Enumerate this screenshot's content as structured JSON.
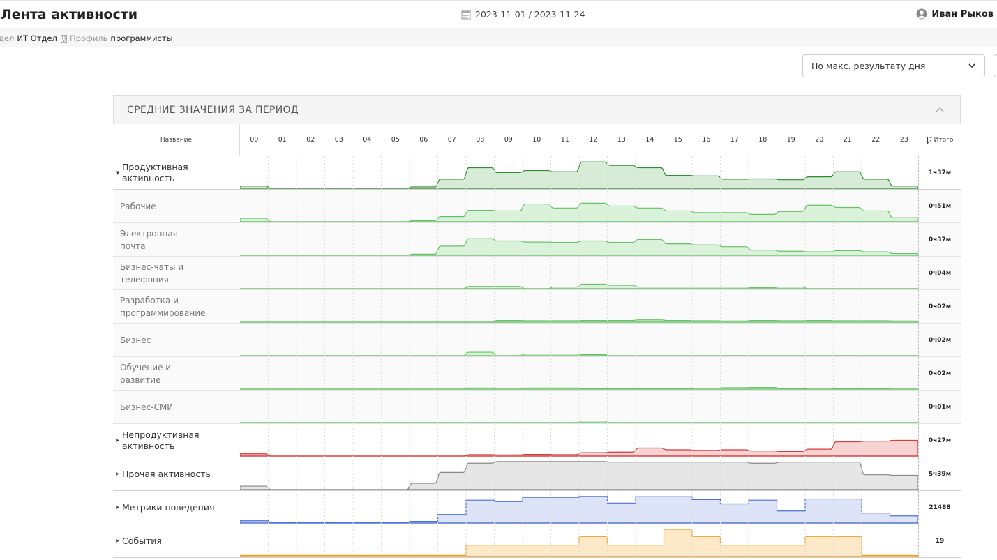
{
  "header": {
    "title": "Лента активности",
    "date_range": "2023-11-01 / 2023-11-24",
    "user_name": "Иван Рыков"
  },
  "filters": {
    "dept_key": "дел",
    "dept_value": "ИТ Отдел",
    "profile_key": "Профиль",
    "profile_value": "программисты"
  },
  "sort": {
    "selected": "По макс. результату дня"
  },
  "panel": {
    "title": "СРЕДНИЕ ЗНАЧЕНИЯ ЗА ПЕРИОД"
  },
  "table": {
    "name_header": "Название",
    "total_header": "Итого",
    "hours": [
      "00",
      "01",
      "02",
      "03",
      "04",
      "05",
      "06",
      "07",
      "08",
      "09",
      "10",
      "11",
      "12",
      "13",
      "14",
      "15",
      "16",
      "17",
      "18",
      "19",
      "20",
      "21",
      "22",
      "23"
    ],
    "rows": [
      {
        "label": "Продуктивная активность",
        "total": "1ч37м",
        "kind": "group",
        "expanded": true,
        "color": "#2e8b2e",
        "fill": "#d7ecd7",
        "shape": "smooth",
        "scale": 1.0,
        "values": [
          0.08,
          0,
          0,
          0,
          0,
          0,
          0.05,
          0.32,
          0.72,
          0.55,
          0.62,
          0.58,
          0.92,
          0.8,
          0.72,
          0.45,
          0.43,
          0.32,
          0.33,
          0.3,
          0.4,
          0.58,
          0.32,
          0.08
        ]
      },
      {
        "label": "Рабочие",
        "total": "0ч51м",
        "kind": "sub",
        "color": "#66c266",
        "fill": "#d9f2d9",
        "shape": "smooth",
        "scale": 1.0,
        "values": [
          0.12,
          0,
          0,
          0,
          0,
          0,
          0.04,
          0.18,
          0.4,
          0.38,
          0.62,
          0.48,
          0.65,
          0.55,
          0.48,
          0.38,
          0.32,
          0.32,
          0.26,
          0.36,
          0.58,
          0.5,
          0.38,
          0.14
        ]
      },
      {
        "label": "Электронная почта",
        "total": "0ч37м",
        "kind": "sub",
        "color": "#66c266",
        "fill": "#d9f2d9",
        "shape": "smooth",
        "scale": 1.0,
        "values": [
          0,
          0,
          0,
          0,
          0,
          0,
          0.04,
          0.32,
          0.58,
          0.5,
          0.46,
          0.45,
          0.5,
          0.45,
          0.55,
          0.4,
          0.36,
          0.3,
          0.18,
          0.14,
          0.12,
          0.16,
          0.12,
          0.06
        ]
      },
      {
        "label": "Бизнес-чаты и телефония",
        "total": "0ч04м",
        "kind": "sub",
        "color": "#66c266",
        "fill": "#d9f2d9",
        "shape": "smooth",
        "scale": 1.0,
        "values": [
          0,
          0,
          0,
          0,
          0,
          0,
          0,
          0,
          0.08,
          0.08,
          0,
          0.06,
          0.16,
          0.12,
          0.06,
          0.06,
          0.06,
          0.06,
          0.04,
          0.06,
          0,
          0,
          0,
          0
        ]
      },
      {
        "label": "Разработка и программирование",
        "total": "0ч02м",
        "kind": "sub",
        "color": "#66c266",
        "fill": "#d9f2d9",
        "shape": "smooth",
        "scale": 1.0,
        "values": [
          0,
          0,
          0,
          0,
          0,
          0,
          0,
          0,
          0,
          0.06,
          0.05,
          0.05,
          0.06,
          0.06,
          0.08,
          0.06,
          0.05,
          0.04,
          0.06,
          0.05,
          0.06,
          0.05,
          0.05,
          0.04
        ]
      },
      {
        "label": "Бизнес",
        "total": "0ч02м",
        "kind": "sub",
        "color": "#66c266",
        "fill": "#d9f2d9",
        "shape": "smooth",
        "scale": 1.0,
        "values": [
          0,
          0,
          0,
          0,
          0,
          0,
          0,
          0,
          0.12,
          0,
          0.06,
          0.06,
          0.04,
          0,
          0,
          0,
          0,
          0,
          0,
          0,
          0,
          0,
          0,
          0
        ]
      },
      {
        "label": "Обучение и развитие",
        "total": "0ч02м",
        "kind": "sub",
        "color": "#66c266",
        "fill": "#d9f2d9",
        "shape": "smooth",
        "scale": 1.0,
        "values": [
          0,
          0,
          0,
          0,
          0,
          0,
          0,
          0,
          0.04,
          0,
          0.04,
          0.04,
          0.03,
          0.03,
          0.03,
          0.03,
          0,
          0.05,
          0.06,
          0.03,
          0,
          0.03,
          0.03,
          0
        ]
      },
      {
        "label": "Бизнес-СМИ",
        "total": "0ч01м",
        "kind": "sub",
        "color": "#66c266",
        "fill": "#d9f2d9",
        "shape": "smooth",
        "scale": 1.0,
        "values": [
          0,
          0,
          0,
          0,
          0,
          0,
          0,
          0,
          0,
          0,
          0,
          0,
          0.06,
          0,
          0,
          0,
          0,
          0,
          0,
          0,
          0,
          0,
          0,
          0
        ]
      },
      {
        "label": "Непродуктивная активность",
        "total": "0ч27м",
        "kind": "group",
        "expanded": false,
        "color": "#d63a3a",
        "fill": "#f6d2d2",
        "shape": "smooth",
        "scale": 1.0,
        "values": [
          0.08,
          0,
          0,
          0,
          0,
          0,
          0,
          0,
          0.05,
          0.04,
          0.06,
          0.05,
          0.12,
          0.14,
          0.28,
          0.22,
          0.2,
          0.22,
          0.18,
          0.16,
          0.24,
          0.5,
          0.52,
          0.55
        ]
      },
      {
        "label": "Прочая активность",
        "total": "5ч39м",
        "kind": "group",
        "expanded": false,
        "color": "#888888",
        "fill": "#e6e6e6",
        "shape": "smooth",
        "scale": 1.0,
        "values": [
          0.12,
          0,
          0,
          0,
          0,
          0,
          0.22,
          0.6,
          0.92,
          0.98,
          0.98,
          0.98,
          0.98,
          0.96,
          0.96,
          0.96,
          0.96,
          0.96,
          0.92,
          0.96,
          0.96,
          0.96,
          0.52,
          0.5
        ]
      },
      {
        "label": "Метрики поведения",
        "total": "21488",
        "kind": "group",
        "expanded": false,
        "color": "#4f6fd6",
        "fill": "#dde4f8",
        "shape": "step",
        "scale": 1.0,
        "values": [
          0.08,
          0.02,
          0.02,
          0.02,
          0.02,
          0.02,
          0.06,
          0.3,
          0.8,
          0.75,
          0.9,
          0.9,
          0.93,
          0.7,
          0.92,
          0.92,
          0.82,
          0.67,
          0.8,
          0.42,
          0.84,
          0.84,
          0.35,
          0.25
        ]
      },
      {
        "label": "События",
        "total": "19",
        "kind": "group",
        "expanded": false,
        "color": "#f0a030",
        "fill": "#fde8c8",
        "shape": "step",
        "scale": 1.0,
        "values": [
          0.04,
          0.04,
          0.04,
          0.04,
          0.04,
          0.04,
          0.04,
          0.04,
          0.4,
          0.4,
          0.4,
          0.4,
          0.7,
          0.4,
          0.4,
          0.95,
          0.7,
          0.4,
          0.4,
          0.4,
          0.7,
          0.7,
          0.04,
          0.04
        ]
      }
    ]
  }
}
